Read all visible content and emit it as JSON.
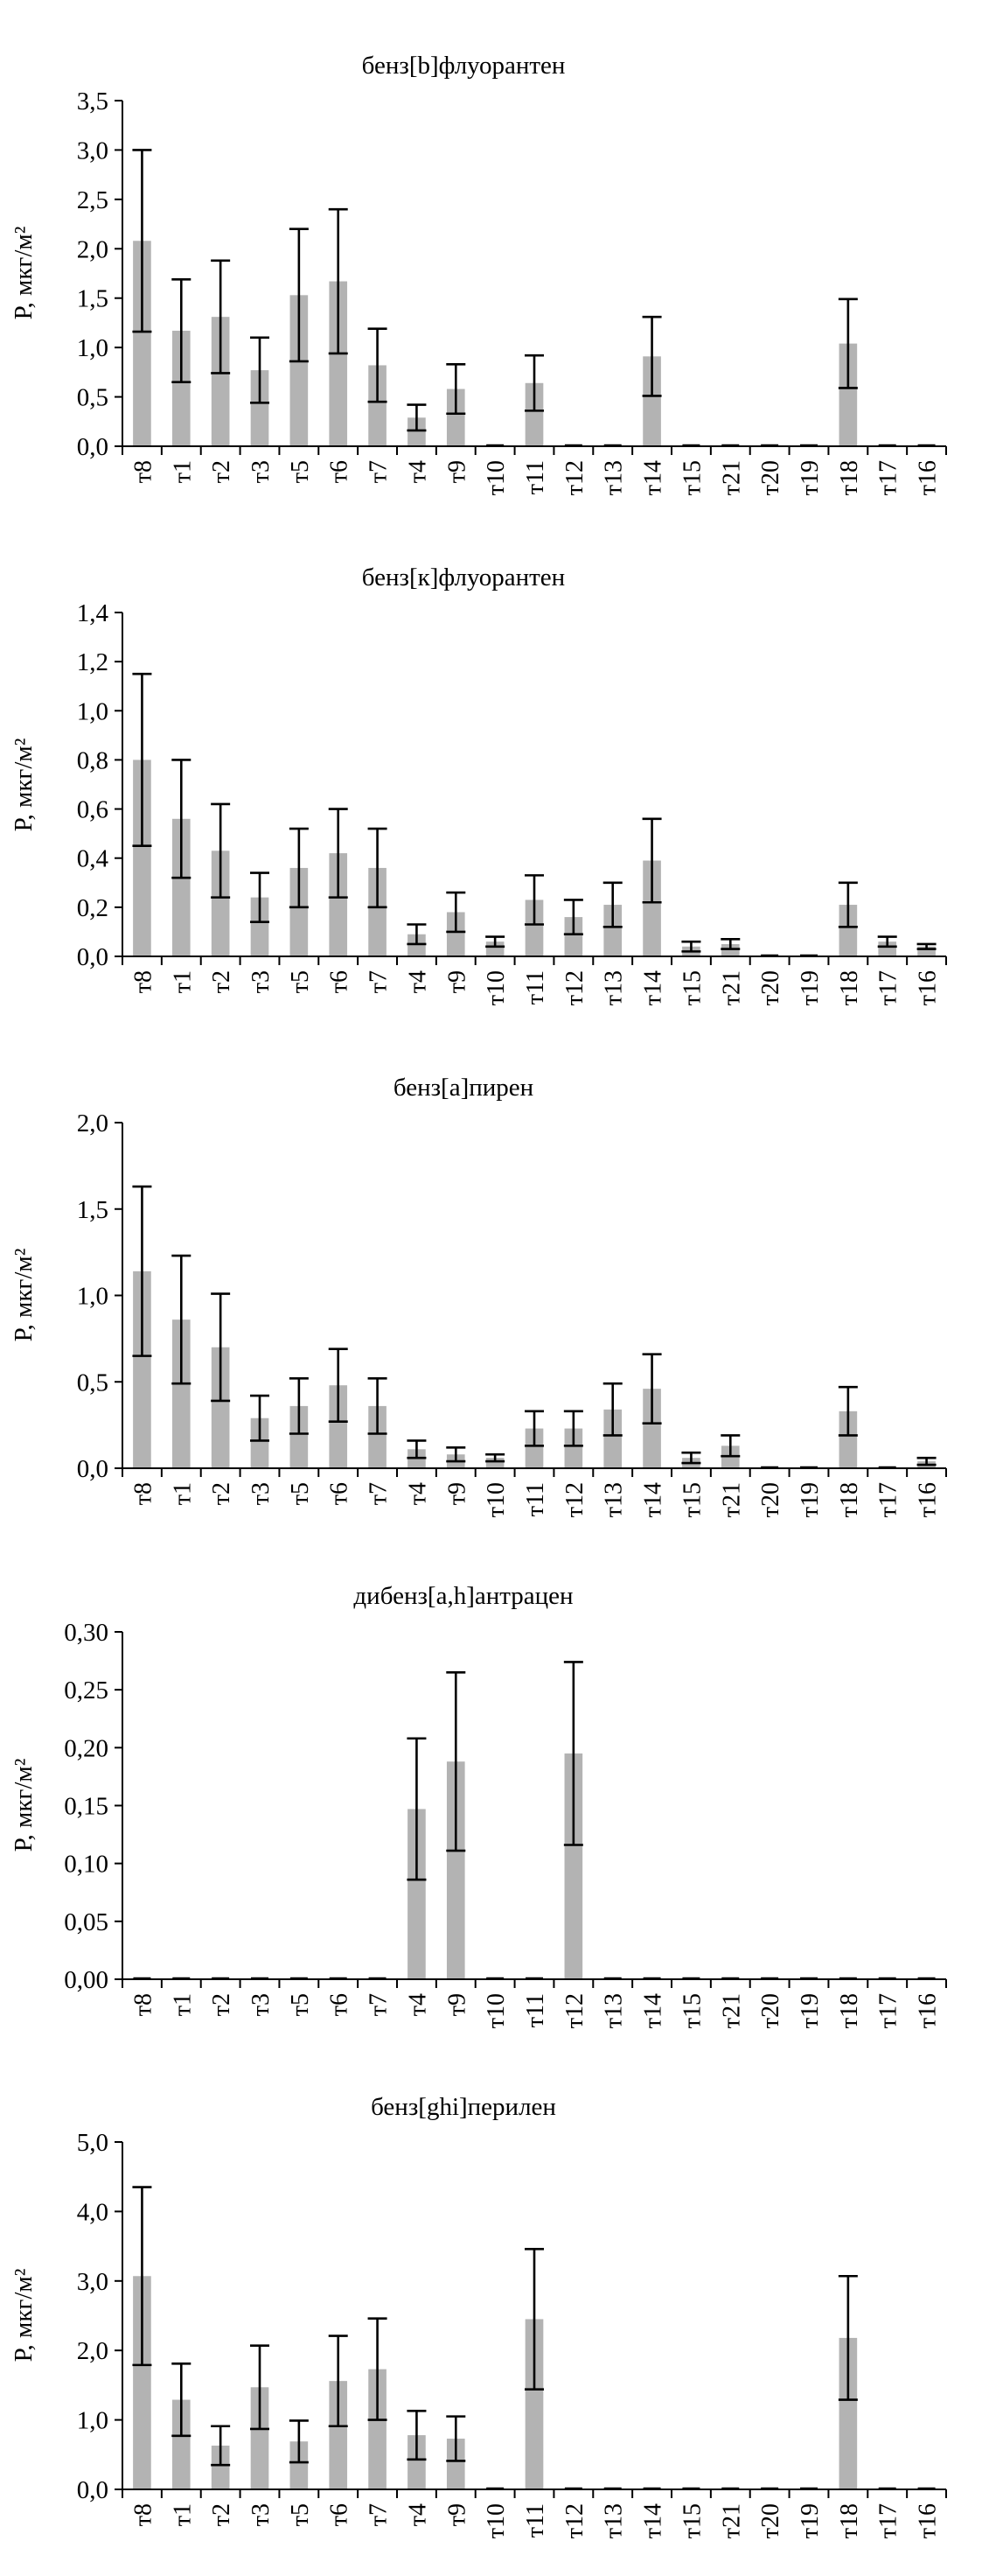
{
  "styles": {
    "bar_color": "#b3b3b3",
    "error_color": "#000000",
    "axis_color": "#000000"
  },
  "chart_data": [
    {
      "type": "bar",
      "title": "бенз[b]флуорантен",
      "ylabel": "P, мкг/м²",
      "ylim": [
        0,
        3.5
      ],
      "yticks": [
        "0,0",
        "0,5",
        "1,0",
        "1,5",
        "2,0",
        "2,5",
        "3,0",
        "3,5"
      ],
      "categories": [
        "т8",
        "т1",
        "т2",
        "т3",
        "т5",
        "т6",
        "т7",
        "т4",
        "т9",
        "т10",
        "т11",
        "т12",
        "т13",
        "т14",
        "т15",
        "т21",
        "т20",
        "т19",
        "т18",
        "т17",
        "т16"
      ],
      "values": [
        2.08,
        1.17,
        1.31,
        0.77,
        1.53,
        1.67,
        0.82,
        0.29,
        0.58,
        0,
        0.64,
        0,
        0,
        0.91,
        0,
        0,
        0,
        0,
        1.04,
        0,
        0
      ],
      "errors": [
        0.92,
        0.52,
        0.57,
        0.33,
        0.67,
        0.73,
        0.37,
        0.13,
        0.25,
        0,
        0.28,
        0,
        0,
        0.4,
        0,
        0,
        0,
        0,
        0.45,
        0,
        0
      ]
    },
    {
      "type": "bar",
      "title": "бенз[к]флуорантен",
      "ylabel": "P, мкг/м²",
      "ylim": [
        0,
        1.4
      ],
      "yticks": [
        "0,0",
        "0,2",
        "0,4",
        "0,6",
        "0,8",
        "1,0",
        "1,2",
        "1,4"
      ],
      "categories": [
        "т8",
        "т1",
        "т2",
        "т3",
        "т5",
        "т6",
        "т7",
        "т4",
        "т9",
        "т10",
        "т11",
        "т12",
        "т13",
        "т14",
        "т15",
        "т21",
        "т20",
        "т19",
        "т18",
        "т17",
        "т16"
      ],
      "values": [
        0.8,
        0.56,
        0.43,
        0.24,
        0.36,
        0.42,
        0.36,
        0.09,
        0.18,
        0.06,
        0.23,
        0.16,
        0.21,
        0.39,
        0.04,
        0.05,
        0,
        0,
        0.21,
        0.06,
        0.04
      ],
      "errors": [
        0.35,
        0.24,
        0.19,
        0.1,
        0.16,
        0.18,
        0.16,
        0.04,
        0.08,
        0.02,
        0.1,
        0.07,
        0.09,
        0.17,
        0.02,
        0.02,
        0,
        0,
        0.09,
        0.02,
        0.01
      ]
    },
    {
      "type": "bar",
      "title": "бенз[a]пирен",
      "ylabel": "P, мкг/м²",
      "ylim": [
        0,
        2.0
      ],
      "yticks": [
        "0,0",
        "0,5",
        "1,0",
        "1,5",
        "2,0"
      ],
      "categories": [
        "т8",
        "т1",
        "т2",
        "т3",
        "т5",
        "т6",
        "т7",
        "т4",
        "т9",
        "т10",
        "т11",
        "т12",
        "т13",
        "т14",
        "т15",
        "т21",
        "т20",
        "т19",
        "т18",
        "т17",
        "т16"
      ],
      "values": [
        1.14,
        0.86,
        0.7,
        0.29,
        0.36,
        0.48,
        0.36,
        0.11,
        0.08,
        0.06,
        0.23,
        0.23,
        0.34,
        0.46,
        0.06,
        0.13,
        0,
        0,
        0.33,
        0,
        0.04
      ],
      "errors": [
        0.49,
        0.37,
        0.31,
        0.13,
        0.16,
        0.21,
        0.16,
        0.05,
        0.04,
        0.02,
        0.1,
        0.1,
        0.15,
        0.2,
        0.03,
        0.06,
        0,
        0,
        0.14,
        0,
        0.02
      ]
    },
    {
      "type": "bar",
      "title": "дибенз[a,h]антрацен",
      "ylabel": "P, мкг/м²",
      "ylim": [
        0,
        0.3
      ],
      "yticks": [
        "0,00",
        "0,05",
        "0,10",
        "0,15",
        "0,20",
        "0,25",
        "0,30"
      ],
      "categories": [
        "т8",
        "т1",
        "т2",
        "т3",
        "т5",
        "т6",
        "т7",
        "т4",
        "т9",
        "т10",
        "т11",
        "т12",
        "т13",
        "т14",
        "т15",
        "т21",
        "т20",
        "т19",
        "т18",
        "т17",
        "т16"
      ],
      "values": [
        0,
        0,
        0,
        0,
        0,
        0,
        0,
        0.147,
        0.188,
        0,
        0,
        0.195,
        0,
        0,
        0,
        0,
        0,
        0,
        0,
        0,
        0
      ],
      "errors": [
        0,
        0,
        0,
        0,
        0,
        0,
        0,
        0.061,
        0.077,
        0,
        0,
        0.079,
        0,
        0,
        0,
        0,
        0,
        0,
        0,
        0,
        0
      ]
    },
    {
      "type": "bar",
      "title": "бенз[ghi]перилен",
      "ylabel": "P, мкг/м²",
      "ylim": [
        0,
        5.0
      ],
      "yticks": [
        "0,0",
        "1,0",
        "2,0",
        "3,0",
        "4,0",
        "5,0"
      ],
      "categories": [
        "т8",
        "т1",
        "т2",
        "т3",
        "т5",
        "т6",
        "т7",
        "т4",
        "т9",
        "т10",
        "т11",
        "т12",
        "т13",
        "т14",
        "т15",
        "т21",
        "т20",
        "т19",
        "т18",
        "т17",
        "т16"
      ],
      "values": [
        3.07,
        1.29,
        0.63,
        1.47,
        0.69,
        1.56,
        1.73,
        0.78,
        0.73,
        0,
        2.45,
        0,
        0,
        0,
        0,
        0,
        0,
        0,
        2.18,
        0,
        0
      ],
      "errors": [
        1.28,
        0.52,
        0.28,
        0.6,
        0.3,
        0.65,
        0.73,
        0.35,
        0.32,
        0,
        1.01,
        0,
        0,
        0,
        0,
        0,
        0,
        0,
        0.89,
        0,
        0
      ]
    }
  ]
}
